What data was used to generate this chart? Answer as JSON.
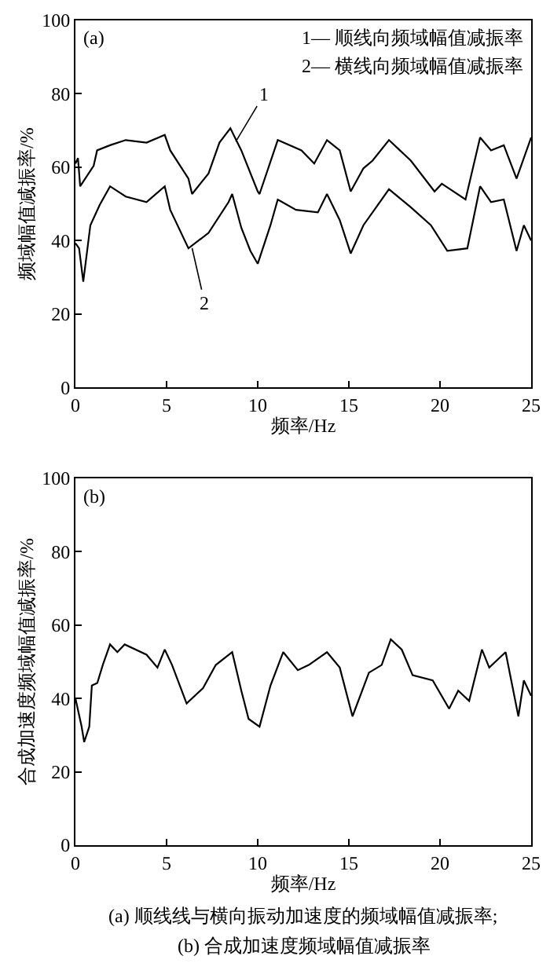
{
  "chart_data": [
    {
      "type": "line",
      "title": "(a)",
      "xlabel": "频率/Hz",
      "ylabel": "频域幅值减振率/%",
      "xlim": [
        0,
        25
      ],
      "xticks": [
        0,
        5,
        10,
        15,
        20,
        25
      ],
      "ylim": [
        0,
        100
      ],
      "yticks": [
        0,
        20,
        40,
        60,
        80,
        100
      ],
      "line_style": "solid",
      "annotations": [
        "1— 顺线向频域幅值减振率",
        "2— 横线向频域幅值减振率",
        {
          "text": "1",
          "x": 8.8,
          "y": 67
        },
        {
          "text": "2",
          "x": 6.4,
          "y": 38
        }
      ],
      "series": [
        {
          "color": "#000000",
          "x": [
            0,
            0.14,
            0.26,
            1.0,
            1.19,
            1.9,
            2.76,
            3.9,
            4.9,
            5.2,
            6.2,
            6.4,
            7.3,
            7.9,
            8.5,
            9.1,
            10.0,
            10.1,
            11.1,
            12.4,
            13.1,
            13.8,
            14.5,
            15.1,
            15.8,
            16.3,
            17.2,
            18.4,
            19.7,
            20.1,
            21.4,
            22.2,
            22.8,
            23.5,
            24.2,
            25
          ],
          "values": [
            61,
            62.5,
            54.8,
            60.4,
            64.6,
            66,
            67.4,
            66.7,
            68.8,
            64.6,
            56.9,
            52.7,
            58.3,
            66.7,
            70.6,
            64.6,
            53.4,
            52.7,
            67.4,
            64.6,
            61,
            67.4,
            64.6,
            53.4,
            59.7,
            61.8,
            67.4,
            61.8,
            53.4,
            55.5,
            51.2,
            68.1,
            64.6,
            66,
            56.9,
            68.1
          ]
        },
        {
          "color": "#000000",
          "x": [
            0,
            0.2,
            0.43,
            0.82,
            1.34,
            1.9,
            2.76,
            3.9,
            4.9,
            5.2,
            6.2,
            7.3,
            8.4,
            8.6,
            9.1,
            9.6,
            10.0,
            10.7,
            11.1,
            12.1,
            13.3,
            13.8,
            14.5,
            15.1,
            15.8,
            17.2,
            18.4,
            19.5,
            20.4,
            21.5,
            22.2,
            22.8,
            23.5,
            24.2,
            24.6,
            25
          ],
          "values": [
            39.3,
            37.9,
            28.8,
            44.2,
            49.8,
            54.8,
            52,
            50.5,
            54.8,
            48.4,
            37.9,
            42.1,
            50.5,
            52.7,
            43.5,
            37.2,
            33.7,
            44.2,
            51.2,
            48.4,
            47.7,
            52.7,
            45.6,
            36.5,
            44.2,
            54,
            49.1,
            44.2,
            37.2,
            37.9,
            54.8,
            50.5,
            51.2,
            37.2,
            44.2,
            40
          ]
        }
      ]
    },
    {
      "type": "line",
      "title": "(b)",
      "xlabel": "频率/Hz",
      "ylabel": "合成加速度频域幅值减振率/%",
      "xlim": [
        0,
        25
      ],
      "xticks": [
        0,
        5,
        10,
        15,
        20,
        25
      ],
      "ylim": [
        0,
        100
      ],
      "yticks": [
        0,
        20,
        40,
        60,
        80,
        100
      ],
      "line_style": "solid",
      "annotations": [
        "(a) 顺线线与横向振动加速度的频域幅值减振率;",
        "(b) 合成加速度频域幅值减振率"
      ],
      "series": [
        {
          "color": "#000000",
          "x": [
            0,
            0.34,
            0.48,
            0.76,
            0.9,
            1.2,
            1.5,
            1.9,
            2.3,
            2.7,
            3.9,
            4.5,
            4.9,
            5.3,
            6.1,
            7.0,
            7.7,
            8.6,
            9.1,
            9.5,
            10.1,
            10.7,
            11.4,
            12.2,
            12.8,
            13.8,
            14.5,
            15.2,
            16.1,
            16.8,
            17.3,
            17.9,
            18.5,
            19.6,
            20.5,
            21.0,
            21.6,
            22.3,
            22.7,
            23.3,
            23.6,
            24.3,
            24.6,
            25
          ],
          "values": [
            40,
            32.3,
            28.1,
            32.3,
            43.5,
            44.2,
            49.1,
            54.7,
            52.6,
            54.7,
            51.9,
            48.4,
            53.3,
            49.1,
            38.6,
            42.8,
            49.1,
            52.6,
            42.1,
            34.4,
            32.3,
            43.5,
            52.6,
            47.7,
            49.1,
            52.6,
            48.4,
            35.1,
            47,
            49.1,
            56.1,
            53.3,
            46.3,
            44.9,
            37.2,
            42.1,
            39.3,
            53.3,
            48.4,
            51.2,
            52.6,
            35.1,
            44.9,
            40.7
          ]
        }
      ]
    }
  ]
}
